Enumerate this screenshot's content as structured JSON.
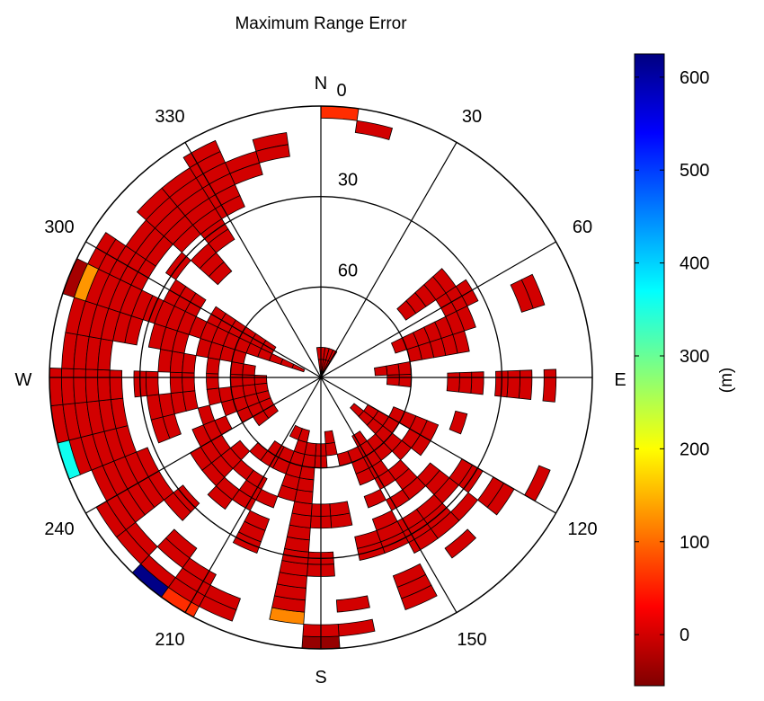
{
  "chart_data": {
    "type": "heatmap",
    "subtype": "polar-skyplot",
    "title": "Maximum Range Error",
    "colorbar": {
      "label": "(m)",
      "colormap": "jet-reversed",
      "range": [
        -55,
        625
      ],
      "ticks": [
        0,
        100,
        200,
        300,
        400,
        500,
        600
      ]
    },
    "compass_labels": [
      "N",
      "E",
      "S",
      "W"
    ],
    "azimuth_ticks": [
      0,
      30,
      60,
      120,
      150,
      210,
      240,
      300,
      330
    ],
    "elevation_ticks": [
      30,
      60
    ],
    "elevation_range": [
      0,
      90
    ],
    "sector_width_deg": 8,
    "ring_width_deg": 4,
    "cell_default_value": 0,
    "cells": [
      {
        "az": 0,
        "el": [
          0,
          4
        ],
        "v": 60
      },
      {
        "az": 0,
        "el": [
          80,
          90
        ]
      },
      {
        "az": 8,
        "el": [
          4,
          8
        ]
      },
      {
        "az": 8,
        "el": [
          80,
          90
        ]
      },
      {
        "az": 16,
        "el": [
          80,
          90
        ]
      },
      {
        "az": 24,
        "el": [
          80,
          90
        ]
      },
      {
        "az": 48,
        "el": [
          36,
          56
        ]
      },
      {
        "az": 56,
        "el": [
          32,
          44
        ]
      },
      {
        "az": 64,
        "el": [
          12,
          20
        ]
      },
      {
        "az": 64,
        "el": [
          36,
          60
        ]
      },
      {
        "az": 64,
        "el": [
          60,
          64
        ]
      },
      {
        "az": 72,
        "el": [
          40,
          60
        ]
      },
      {
        "az": 80,
        "el": [
          60,
          72
        ]
      },
      {
        "az": 88,
        "el": [
          12,
          16
        ]
      },
      {
        "az": 88,
        "el": [
          20,
          32
        ]
      },
      {
        "az": 88,
        "el": [
          36,
          48
        ]
      },
      {
        "az": 88,
        "el": [
          60,
          68
        ]
      },
      {
        "az": 104,
        "el": [
          40,
          44
        ]
      },
      {
        "az": 112,
        "el": [
          8,
          12
        ]
      },
      {
        "az": 112,
        "el": [
          48,
          64
        ]
      },
      {
        "az": 120,
        "el": [
          16,
          24
        ]
      },
      {
        "az": 120,
        "el": [
          28,
          36
        ]
      },
      {
        "az": 120,
        "el": [
          48,
          56
        ]
      },
      {
        "az": 120,
        "el": [
          60,
          72
        ]
      },
      {
        "az": 128,
        "el": [
          24,
          28
        ]
      },
      {
        "az": 128,
        "el": [
          32,
          44
        ]
      },
      {
        "az": 128,
        "el": [
          52,
          76
        ]
      },
      {
        "az": 136,
        "el": [
          16,
          20
        ]
      },
      {
        "az": 136,
        "el": [
          24,
          36
        ]
      },
      {
        "az": 136,
        "el": [
          40,
          52
        ]
      },
      {
        "az": 136,
        "el": [
          56,
          64
        ]
      },
      {
        "az": 144,
        "el": [
          24,
          36
        ]
      },
      {
        "az": 144,
        "el": [
          40,
          44
        ]
      },
      {
        "az": 144,
        "el": [
          48,
          68
        ]
      },
      {
        "az": 152,
        "el": [
          8,
          20
        ]
      },
      {
        "az": 152,
        "el": [
          28,
          40
        ]
      },
      {
        "az": 152,
        "el": [
          44,
          48
        ]
      },
      {
        "az": 152,
        "el": [
          52,
          64
        ]
      },
      {
        "az": 160,
        "el": [
          28,
          36
        ]
      },
      {
        "az": 160,
        "el": [
          60,
          64
        ]
      },
      {
        "az": 168,
        "el": [
          4,
          8
        ]
      },
      {
        "az": 168,
        "el": [
          12,
          16
        ]
      },
      {
        "az": 168,
        "el": [
          40,
          48
        ]
      },
      {
        "az": 168,
        "el": [
          64,
          72
        ]
      },
      {
        "az": 176,
        "el": [
          0,
          4
        ],
        "v": -40
      },
      {
        "az": 176,
        "el": [
          4,
          8
        ]
      },
      {
        "az": 176,
        "el": [
          24,
          32
        ]
      },
      {
        "az": 176,
        "el": [
          40,
          48
        ]
      },
      {
        "az": 176,
        "el": [
          60,
          68
        ]
      },
      {
        "az": 184,
        "el": [
          8,
          12
        ],
        "v": 120
      },
      {
        "az": 184,
        "el": [
          12,
          68
        ]
      },
      {
        "az": 192,
        "el": [
          48,
          64
        ]
      },
      {
        "az": 192,
        "el": [
          64,
          72
        ]
      },
      {
        "az": 200,
        "el": [
          4,
          12
        ]
      },
      {
        "az": 200,
        "el": [
          28,
          40
        ]
      },
      {
        "az": 200,
        "el": [
          44,
          48
        ]
      },
      {
        "az": 200,
        "el": [
          56,
          64
        ]
      },
      {
        "az": 200,
        "el": [
          68,
          72
        ]
      },
      {
        "az": 208,
        "el": [
          0,
          4
        ],
        "v": 60
      },
      {
        "az": 208,
        "el": [
          4,
          16
        ]
      },
      {
        "az": 208,
        "el": [
          40,
          52
        ]
      },
      {
        "az": 208,
        "el": [
          56,
          64
        ]
      },
      {
        "az": 216,
        "el": [
          0,
          4
        ],
        "v": 620
      },
      {
        "az": 216,
        "el": [
          4,
          8
        ]
      },
      {
        "az": 216,
        "el": [
          12,
          20
        ]
      },
      {
        "az": 216,
        "el": [
          36,
          44
        ]
      },
      {
        "az": 216,
        "el": [
          48,
          52
        ]
      },
      {
        "az": 216,
        "el": [
          56,
          60
        ]
      },
      {
        "az": 224,
        "el": [
          4,
          12
        ]
      },
      {
        "az": 224,
        "el": [
          24,
          32
        ]
      },
      {
        "az": 224,
        "el": [
          40,
          56
        ]
      },
      {
        "az": 232,
        "el": [
          4,
          12
        ]
      },
      {
        "az": 232,
        "el": [
          12,
          16
        ]
      },
      {
        "az": 232,
        "el": [
          16,
          28
        ]
      },
      {
        "az": 232,
        "el": [
          40,
          52
        ]
      },
      {
        "az": 232,
        "el": [
          64,
          72
        ]
      },
      {
        "az": 240,
        "el": [
          8,
          24
        ]
      },
      {
        "az": 240,
        "el": [
          24,
          28
        ]
      },
      {
        "az": 240,
        "el": [
          44,
          56
        ]
      },
      {
        "az": 240,
        "el": [
          60,
          72
        ]
      },
      {
        "az": 248,
        "el": [
          0,
          4
        ],
        "v": 360
      },
      {
        "az": 248,
        "el": [
          4,
          12
        ]
      },
      {
        "az": 248,
        "el": [
          12,
          24
        ]
      },
      {
        "az": 248,
        "el": [
          32,
          40
        ]
      },
      {
        "az": 248,
        "el": [
          48,
          52
        ]
      },
      {
        "az": 248,
        "el": [
          56,
          72
        ]
      },
      {
        "az": 256,
        "el": [
          0,
          24
        ]
      },
      {
        "az": 256,
        "el": [
          32,
          48
        ]
      },
      {
        "az": 256,
        "el": [
          52,
          72
        ]
      },
      {
        "az": 264,
        "el": [
          0,
          24
        ]
      },
      {
        "az": 264,
        "el": [
          28,
          36
        ]
      },
      {
        "az": 264,
        "el": [
          40,
          48
        ]
      },
      {
        "az": 264,
        "el": [
          52,
          56
        ]
      },
      {
        "az": 264,
        "el": [
          60,
          72
        ]
      },
      {
        "az": 272,
        "el": [
          4,
          12
        ]
      },
      {
        "az": 272,
        "el": [
          12,
          20
        ]
      },
      {
        "az": 272,
        "el": [
          36,
          48
        ]
      },
      {
        "az": 272,
        "el": [
          52,
          56
        ]
      },
      {
        "az": 272,
        "el": [
          60,
          68
        ]
      },
      {
        "az": 280,
        "el": [
          4,
          12
        ]
      },
      {
        "az": 280,
        "el": [
          12,
          28
        ]
      },
      {
        "az": 280,
        "el": [
          32,
          44
        ]
      },
      {
        "az": 280,
        "el": [
          48,
          60
        ]
      },
      {
        "az": 280,
        "el": [
          60,
          64
        ]
      },
      {
        "az": 288,
        "el": [
          0,
          4
        ],
        "v": -30
      },
      {
        "az": 288,
        "el": [
          4,
          8
        ],
        "v": 130
      },
      {
        "az": 288,
        "el": [
          8,
          72
        ]
      },
      {
        "az": 288,
        "el": [
          72,
          84
        ]
      },
      {
        "az": 296,
        "el": [
          4,
          16
        ]
      },
      {
        "az": 296,
        "el": [
          16,
          24
        ]
      },
      {
        "az": 296,
        "el": [
          32,
          44
        ]
      },
      {
        "az": 296,
        "el": [
          48,
          72
        ]
      },
      {
        "az": 304,
        "el": [
          12,
          24
        ]
      },
      {
        "az": 304,
        "el": [
          28,
          32
        ]
      },
      {
        "az": 312,
        "el": [
          8,
          28
        ]
      },
      {
        "az": 312,
        "el": [
          32,
          44
        ]
      },
      {
        "az": 320,
        "el": [
          8,
          36
        ]
      },
      {
        "az": 328,
        "el": [
          4,
          28
        ]
      },
      {
        "az": 336,
        "el": [
          12,
          20
        ]
      },
      {
        "az": 344,
        "el": [
          8,
          16
        ]
      },
      {
        "az": 352,
        "el": [
          80,
          90
        ]
      }
    ]
  }
}
